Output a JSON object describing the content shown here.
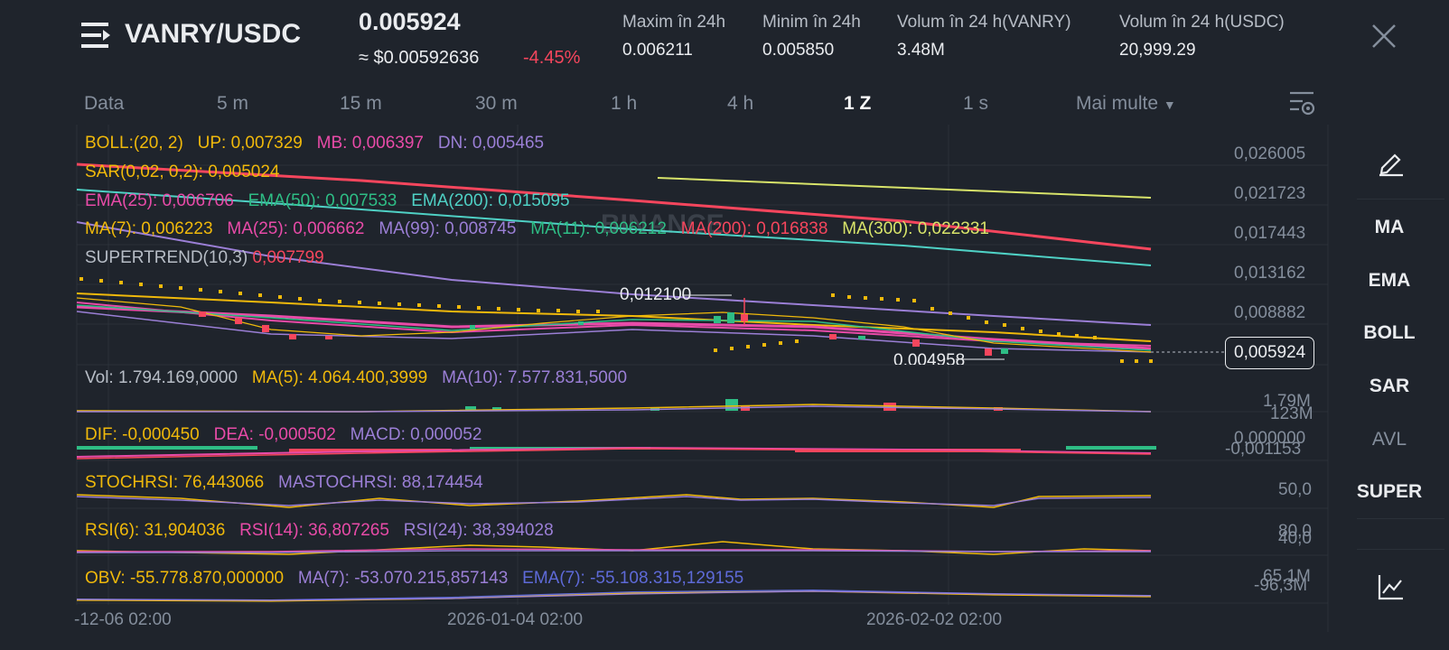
{
  "header": {
    "pair": "VANRY/USDC",
    "price": "0.005924",
    "usd_price": "≈ $0.00592636",
    "change": "-4.45%",
    "stats": [
      {
        "label": "Maxim în 24h",
        "value": "0.006211"
      },
      {
        "label": "Minim în 24h",
        "value": "0.005850"
      },
      {
        "label": "Volum în 24 h(VANRY)",
        "value": "3.48M"
      },
      {
        "label": "Volum în 24 h(USDC)",
        "value": "20,999.29"
      }
    ]
  },
  "timeframes": [
    "Data",
    "5 m",
    "15 m",
    "30 m",
    "1 h",
    "4 h",
    "1 Z",
    "1 s",
    "Mai multe"
  ],
  "active_timeframe": "1 Z",
  "indicators": {
    "boll": {
      "name": "BOLL:(20, 2)",
      "up": "UP: 0,007329",
      "mb": "MB: 0,006397",
      "dn": "DN: 0,005465"
    },
    "sar": "SAR(0,02, 0,2): 0,005024",
    "ema": {
      "ema25": "EMA(25): 0,006706",
      "ema50": "EMA(50): 0,007533",
      "ema200": "EMA(200): 0,015095"
    },
    "ma": {
      "ma7": "MA(7): 0,006223",
      "ma25": "MA(25): 0,006662",
      "ma99": "MA(99): 0,008745",
      "ma11": "MA(11): 0,006212",
      "ma200": "MA(200): 0,016838",
      "ma300": "MA(300): 0,022331"
    },
    "supertrend": {
      "name": "SUPERTREND(10,3)",
      "value": "0,007799"
    },
    "vol": {
      "vol": "Vol: 1.794.169,0000",
      "ma5": "MA(5): 4.064.400,3999",
      "ma10": "MA(10): 7.577.831,5000"
    },
    "macd": {
      "dif": "DIF: -0,000450",
      "dea": "DEA: -0,000502",
      "macd": "MACD: 0,000052"
    },
    "stoch": {
      "k": "STOCHRSI: 76,443066",
      "d": "MASTOCHRSI: 88,174454"
    },
    "rsi": {
      "r6": "RSI(6): 31,904036",
      "r14": "RSI(14): 36,807265",
      "r24": "RSI(24): 38,394028"
    },
    "obv": {
      "obv": "OBV: -55.778.870,000000",
      "ma7": "MA(7): -53.070.215,857143",
      "ema7": "EMA(7): -55.108.315,129155"
    }
  },
  "chart": {
    "y_ticks": [
      "0,026005",
      "0,021723",
      "0,017443",
      "0,013162",
      "0,008882"
    ],
    "current_price": "0,005924",
    "high_label": "0,012100",
    "low_label": "0,004958",
    "vol_axis": [
      "1,79M",
      "123M"
    ],
    "macd_axis": [
      "0,000000",
      "-0,001153"
    ],
    "stoch_axis": "50,0",
    "rsi_axis": [
      "80,0",
      "40,0"
    ],
    "obv_axis": [
      "65,1M",
      "-96,3M"
    ],
    "x_ticks": [
      "-12-06 02:00",
      "2026-01-04 02:00",
      "2026-02-02 02:00"
    ],
    "watermark": "BINANCE"
  },
  "sidebar": [
    "MA",
    "EMA",
    "BOLL",
    "SAR",
    "AVL",
    "SUPER"
  ],
  "colors": {
    "background": "#1f242c",
    "up": "#2ebd85",
    "down": "#f6465d",
    "accent": "#f0b90b"
  }
}
